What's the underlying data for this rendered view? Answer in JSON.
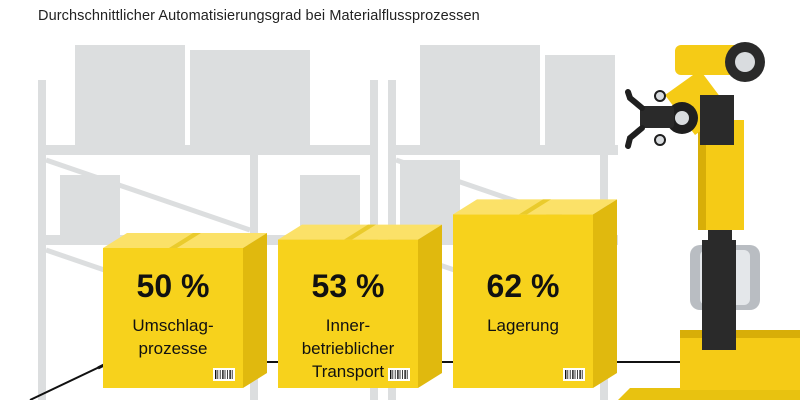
{
  "title": "Durchschnittlicher Automatisierungsgrad bei Materialflussprozessen",
  "colors": {
    "box_front": "#F7D21C",
    "box_top": "#FBE168",
    "box_side": "#E0B90E",
    "shelf": "#DCDEDF",
    "text": "#111111",
    "robot_yellow": "#F5CB16",
    "robot_dark": "#2A2A2A"
  },
  "chart_data": {
    "type": "bar",
    "title": "Durchschnittlicher Automatisierungsgrad bei Materialflussprozessen",
    "unit": "%",
    "categories": [
      [
        "Umschlag-",
        "prozesse"
      ],
      [
        "Inner-",
        "betrieblicher",
        "Transport"
      ],
      [
        "Lagerung"
      ]
    ],
    "values": [
      50,
      53,
      62
    ],
    "value_labels": [
      "50 %",
      "53 %",
      "62 %"
    ]
  }
}
